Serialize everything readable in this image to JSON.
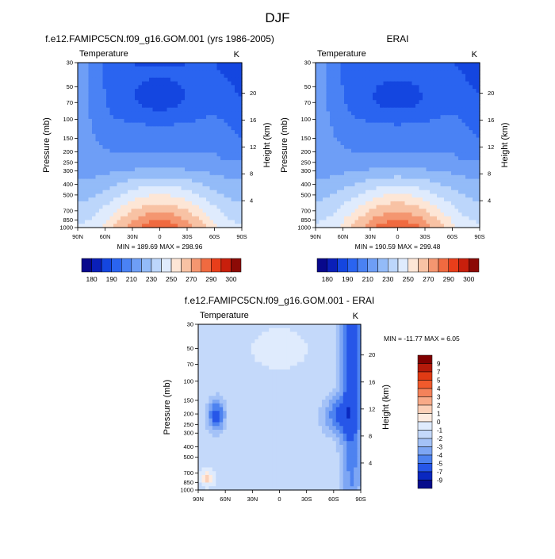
{
  "main_title": "DJF",
  "chart_data": [
    {
      "type": "heatmap",
      "id": "model",
      "title": "f.e12.FAMIPC5CN.f09_g16.GOM.001 (yrs 1986-2005)",
      "variable": "Temperature",
      "units": "K",
      "ylabel": "Pressure (mb)",
      "ylabel_right": "Height (km)",
      "xticks": [
        "90N",
        "60N",
        "30N",
        "0",
        "30S",
        "60S",
        "90S"
      ],
      "yticks": [
        "30",
        "50",
        "70",
        "100",
        "150",
        "200",
        "250",
        "300",
        "400",
        "500",
        "700",
        "850",
        "1000"
      ],
      "yticks_right": [
        "4",
        "8",
        "12",
        "16",
        "20"
      ],
      "stats": "MIN = 189.69   MAX = 298.96",
      "levels": [
        "180",
        "190",
        "200",
        "210",
        "220",
        "230",
        "240",
        "250",
        "260",
        "270",
        "280",
        "290",
        "300"
      ],
      "colorbar_labels": [
        "180",
        "190",
        "210",
        "230",
        "250",
        "270",
        "290",
        "300"
      ],
      "min": 189.69,
      "max": 298.96
    },
    {
      "type": "heatmap",
      "id": "erai",
      "title": "ERAI",
      "variable": "Temperature",
      "units": "K",
      "ylabel": "Pressure (mb)",
      "ylabel_right": "Height (km)",
      "xticks": [
        "90N",
        "60N",
        "30N",
        "0",
        "30S",
        "60S",
        "90S"
      ],
      "yticks": [
        "30",
        "50",
        "70",
        "100",
        "150",
        "200",
        "250",
        "300",
        "400",
        "500",
        "700",
        "850",
        "1000"
      ],
      "yticks_right": [
        "4",
        "8",
        "12",
        "16",
        "20"
      ],
      "stats": "MIN = 190.59   MAX = 299.48",
      "levels": [
        "180",
        "190",
        "200",
        "210",
        "220",
        "230",
        "240",
        "250",
        "260",
        "270",
        "280",
        "290",
        "300"
      ],
      "colorbar_labels": [
        "180",
        "190",
        "210",
        "230",
        "250",
        "270",
        "290",
        "300"
      ],
      "min": 190.59,
      "max": 299.48
    },
    {
      "type": "heatmap",
      "id": "diff",
      "title": "f.e12.FAMIPC5CN.f09_g16.GOM.001 - ERAI",
      "variable": "Temperature",
      "units": "K",
      "ylabel": "Pressure (mb)",
      "ylabel_right": "Height (km)",
      "xticks": [
        "90N",
        "60N",
        "30N",
        "0",
        "30S",
        "60S",
        "90S"
      ],
      "yticks": [
        "30",
        "50",
        "70",
        "100",
        "150",
        "200",
        "250",
        "300",
        "400",
        "500",
        "700",
        "850",
        "1000"
      ],
      "yticks_right": [
        "4",
        "8",
        "12",
        "16",
        "20"
      ],
      "stats": "MIN = -11.77   MAX =    6.05",
      "colorbar_labels": [
        "9",
        "7",
        "5",
        "4",
        "3",
        "2",
        "1",
        "0",
        "-1",
        "-2",
        "-3",
        "-4",
        "-5",
        "-7",
        "-9"
      ],
      "min": -11.77,
      "max": 6.05
    }
  ],
  "palettes": {
    "temperature": [
      "#08088c",
      "#0a1fb8",
      "#1446e0",
      "#2a64f0",
      "#4a82f4",
      "#6e9ef6",
      "#93bbf8",
      "#bcd6fb",
      "#dfebfd",
      "#fde6d6",
      "#f8c2a4",
      "#f49670",
      "#f06a40",
      "#e83e1a",
      "#c81f0c",
      "#8c0a06"
    ],
    "difference": [
      "#800000",
      "#b41a0a",
      "#e03a14",
      "#f05a2c",
      "#f4825a",
      "#f8aa88",
      "#fbd0b8",
      "#fdebe0",
      "#dfebfd",
      "#c4d9fa",
      "#a4c2f7",
      "#7da6f4",
      "#4d82f0",
      "#2656e8",
      "#0a28c0",
      "#060c8c"
    ]
  }
}
